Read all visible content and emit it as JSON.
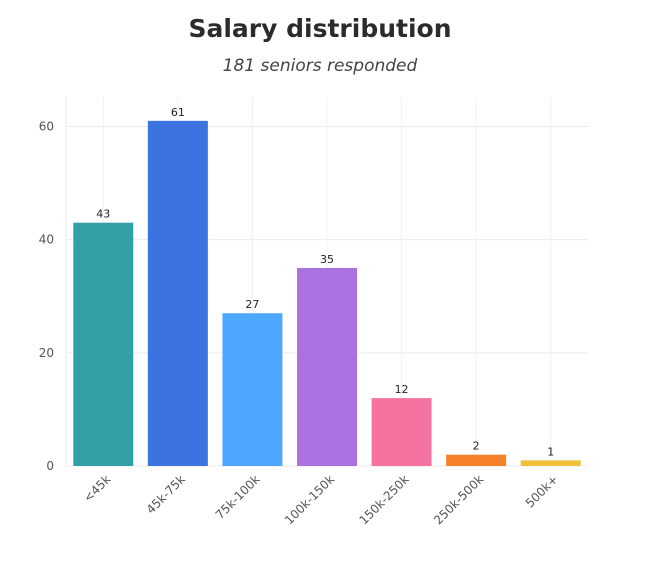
{
  "chart_data": {
    "type": "bar",
    "title": "Salary distribution",
    "subtitle": "181 seniors responded",
    "xlabel": "",
    "ylabel": "",
    "categories": [
      "<45k",
      "45k-75k",
      "75k-100k",
      "100k-150k",
      "150k-250k",
      "250k-500k",
      "500k+"
    ],
    "values": [
      43,
      61,
      27,
      35,
      12,
      2,
      1
    ],
    "data_labels": [
      "43",
      "61",
      "27",
      "35",
      "12",
      "2",
      "1"
    ],
    "colors": [
      "#33a0a8",
      "#3b74e0",
      "#4da6ff",
      "#aa72e0",
      "#f472a0",
      "#f5822a",
      "#f0c23c"
    ],
    "ylim": [
      0,
      65
    ],
    "yticks": [
      0,
      20,
      40,
      60
    ],
    "ytick_labels": [
      "0",
      "20",
      "40",
      "60"
    ],
    "grid": true,
    "legend": "none"
  }
}
